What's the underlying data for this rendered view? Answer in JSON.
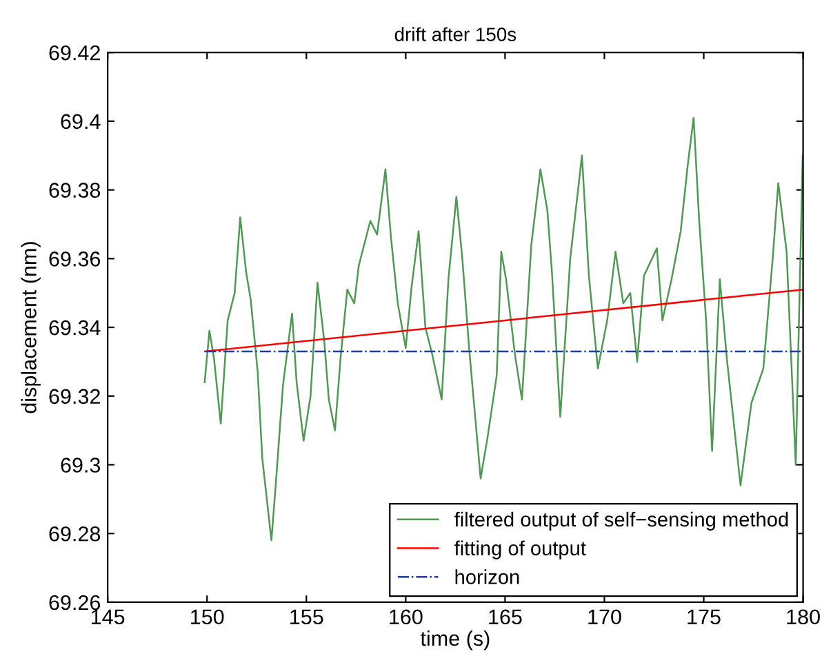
{
  "chart_data": {
    "type": "line",
    "title": "drift after 150s",
    "xlabel": "time (s)",
    "ylabel": "displacement (nm)",
    "xlim": [
      145,
      180
    ],
    "xticks": [
      145,
      150,
      155,
      160,
      165,
      170,
      175,
      180
    ],
    "ylim": [
      69.26,
      69.42
    ],
    "yticks": [
      69.26,
      69.28,
      69.3,
      69.32,
      69.34,
      69.36,
      69.38,
      69.4,
      69.42
    ],
    "grid": false,
    "legend": "bottom right",
    "marker": "none",
    "series": [
      {
        "name": "filtered output of self−sensing method",
        "color": "#4f9a52",
        "line_style": "solid",
        "x": [
          149.88,
          150.12,
          150.35,
          150.69,
          151.04,
          151.39,
          151.67,
          151.97,
          152.2,
          152.55,
          152.78,
          153.24,
          153.47,
          153.82,
          154.28,
          154.51,
          154.86,
          155.21,
          155.56,
          155.9,
          156.13,
          156.44,
          156.72,
          157.06,
          157.41,
          157.64,
          158.22,
          158.56,
          158.98,
          159.26,
          159.6,
          160.0,
          160.3,
          160.65,
          160.99,
          161.34,
          161.81,
          162.15,
          162.55,
          162.85,
          163.19,
          163.77,
          164.12,
          164.58,
          164.81,
          165.05,
          165.5,
          165.85,
          166.32,
          166.78,
          167.13,
          167.36,
          167.78,
          168.28,
          168.87,
          169.22,
          169.67,
          170.14,
          170.56,
          170.95,
          171.3,
          171.65,
          171.99,
          172.64,
          172.92,
          173.38,
          173.84,
          174.19,
          174.49,
          174.77,
          175.12,
          175.42,
          175.81,
          176.16,
          176.85,
          177.4,
          178.0,
          178.47,
          178.75,
          179.17,
          179.63,
          179.98
        ],
        "values": [
          69.324,
          69.339,
          69.331,
          69.312,
          69.342,
          69.35,
          69.372,
          69.356,
          69.348,
          69.327,
          69.302,
          69.278,
          69.295,
          69.323,
          69.344,
          69.324,
          69.307,
          69.32,
          69.353,
          69.336,
          69.319,
          69.31,
          69.331,
          69.351,
          69.347,
          69.358,
          69.371,
          69.367,
          69.386,
          69.366,
          69.347,
          69.334,
          69.352,
          69.368,
          69.34,
          69.332,
          69.319,
          69.354,
          69.378,
          69.36,
          69.334,
          69.296,
          69.308,
          69.326,
          69.362,
          69.354,
          69.332,
          69.319,
          69.364,
          69.386,
          69.374,
          69.356,
          69.314,
          69.36,
          69.39,
          69.355,
          69.328,
          69.342,
          69.362,
          69.347,
          69.35,
          69.33,
          69.355,
          69.363,
          69.342,
          69.354,
          69.368,
          69.387,
          69.401,
          69.371,
          69.342,
          69.304,
          69.354,
          69.331,
          69.294,
          69.318,
          69.328,
          69.36,
          69.382,
          69.362,
          69.3,
          69.39
        ]
      },
      {
        "name": "fitting of output",
        "color": "#ff0000",
        "line_style": "solid",
        "x": [
          149.9,
          180
        ],
        "values": [
          69.333,
          69.351
        ]
      },
      {
        "name": "horizon",
        "color": "#1f3f9f",
        "line_style": "dashdot",
        "x": [
          149.9,
          180
        ],
        "values": [
          69.333,
          69.333
        ]
      }
    ]
  }
}
